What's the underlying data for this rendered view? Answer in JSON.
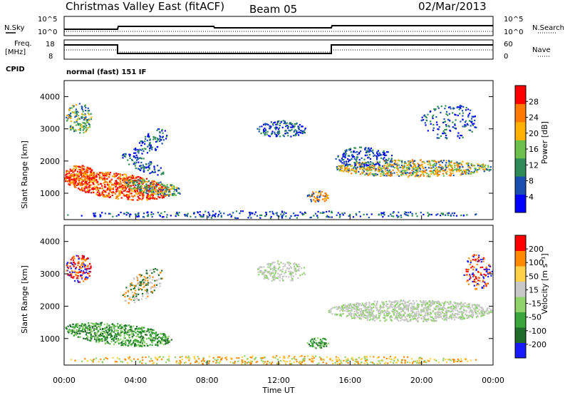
{
  "header": {
    "station": "Christmas Valley East (fitACF)",
    "beam": "Beam 05",
    "date": "02/Mar/2013"
  },
  "panels": {
    "nsky_label": "N.Sky",
    "nsearch_label": "N.Search",
    "noise_ticks": [
      "10^5",
      "10^0"
    ],
    "freq_label": "Freq.",
    "freq_unit": "[MHz]",
    "freq_ticks": [
      "18",
      "8"
    ],
    "nave_label": "Nave",
    "nave_ticks": [
      "60",
      "0"
    ],
    "cpid_label": "CPID",
    "cpid_value": "normal (fast) 151 IF"
  },
  "chart_data": [
    {
      "type": "heatmap",
      "name": "power",
      "ylabel": "Slant Range [km]",
      "yticks": [
        "4000",
        "3000",
        "2000",
        "1000"
      ],
      "ylim": [
        180,
        4500
      ],
      "colorbar_label": "Power [dB]",
      "colorbar_ticks": [
        "28",
        "24",
        "20",
        "16",
        "12",
        "8",
        "4"
      ],
      "colors": [
        "#0000ff",
        "#1a4fb0",
        "#2e8b57",
        "#6cbf4a",
        "#ffb000",
        "#ff7a00",
        "#ff0000"
      ]
    },
    {
      "type": "heatmap",
      "name": "velocity",
      "ylabel": "Slant Range [km]",
      "yticks": [
        "4000",
        "3000",
        "2000",
        "1000"
      ],
      "ylim": [
        180,
        4500
      ],
      "colorbar_label": "Velocity [m s⁻¹]",
      "colorbar_ticks": [
        "200",
        "100",
        "50",
        "15",
        "-15",
        "-50",
        "-100",
        "-200"
      ],
      "colors": [
        "#1a1aff",
        "#1f6b2a",
        "#3aa53a",
        "#8fd36a",
        "#c8c8c8",
        "#ffd24a",
        "#ff8a00",
        "#ff0000"
      ]
    }
  ],
  "xaxis": {
    "label": "Time UT",
    "ticks": [
      "00:00",
      "04:00",
      "08:00",
      "12:00",
      "16:00",
      "20:00",
      "00:00"
    ]
  }
}
